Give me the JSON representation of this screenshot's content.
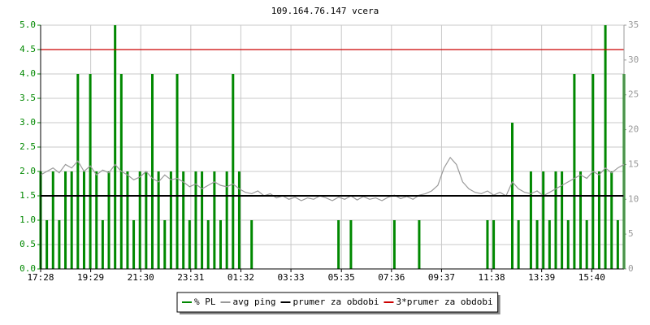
{
  "chart_data": {
    "type": "line",
    "title": "109.164.76.147 vcera",
    "x": [
      "17:28",
      "17:43",
      "17:58",
      "18:13",
      "18:28",
      "18:43",
      "18:58",
      "19:13",
      "19:28",
      "19:43",
      "19:58",
      "20:13",
      "20:28",
      "20:43",
      "20:58",
      "21:13",
      "21:28",
      "21:43",
      "21:58",
      "22:13",
      "22:28",
      "22:43",
      "22:58",
      "23:13",
      "23:28",
      "23:43",
      "23:58",
      "00:13",
      "00:28",
      "00:43",
      "00:58",
      "01:13",
      "01:28",
      "01:43",
      "01:58",
      "02:13",
      "02:28",
      "02:43",
      "02:58",
      "03:13",
      "03:28",
      "03:43",
      "03:58",
      "04:13",
      "04:28",
      "04:43",
      "04:58",
      "05:13",
      "05:28",
      "05:43",
      "05:58",
      "06:13",
      "06:28",
      "06:43",
      "06:58",
      "07:13",
      "07:28",
      "07:43",
      "07:58",
      "08:13",
      "08:28",
      "08:43",
      "08:58",
      "09:13",
      "09:28",
      "09:43",
      "09:58",
      "10:13",
      "10:28",
      "10:43",
      "10:58",
      "11:13",
      "11:28",
      "11:43",
      "11:58",
      "12:13",
      "12:28",
      "12:43",
      "12:58",
      "13:13",
      "13:28",
      "13:43",
      "13:58",
      "14:13",
      "14:28",
      "14:43",
      "14:58",
      "15:13",
      "15:28",
      "15:43",
      "15:58",
      "16:13",
      "16:28",
      "16:43",
      "16:58"
    ],
    "xlim": [
      "17:28",
      "16:58"
    ],
    "xticks": [
      "17:28",
      "19:29",
      "21:30",
      "23:31",
      "01:32",
      "03:33",
      "05:35",
      "07:36",
      "09:37",
      "11:38",
      "13:39",
      "15:40"
    ],
    "ylim": [
      0,
      5
    ],
    "yticks": [
      {
        "value": 0,
        "label": "0.0"
      },
      {
        "value": 0.5,
        "label": "0.5"
      },
      {
        "value": 1,
        "label": "1.0"
      },
      {
        "value": 1.5,
        "label": "1.5"
      },
      {
        "value": 2,
        "label": "2.0"
      },
      {
        "value": 2.5,
        "label": "2.5"
      },
      {
        "value": 3,
        "label": "3.0"
      },
      {
        "value": 3.5,
        "label": "3.5"
      },
      {
        "value": 4,
        "label": "4.0"
      },
      {
        "value": 4.5,
        "label": "4.5"
      },
      {
        "value": 5,
        "label": "5.0"
      }
    ],
    "y2lim": [
      0,
      35
    ],
    "y2ticks": [
      0,
      5,
      10,
      15,
      20,
      25,
      30,
      35
    ],
    "grid": true,
    "series": [
      {
        "name": "% PL",
        "color": "#008800",
        "style": "bar",
        "values": [
          2,
          1,
          2,
          1,
          2,
          2,
          4,
          2,
          4,
          2,
          1,
          2,
          5,
          4,
          2,
          1,
          2,
          2,
          4,
          2,
          1,
          2,
          4,
          2,
          1,
          2,
          2,
          1,
          2,
          1,
          2,
          4,
          2,
          0,
          1,
          0,
          0,
          0,
          0,
          0,
          0,
          0,
          0,
          0,
          0,
          0,
          0,
          0,
          1,
          0,
          1,
          0,
          0,
          0,
          0,
          0,
          0,
          1,
          0,
          0,
          0,
          1,
          0,
          0,
          0,
          0,
          0,
          0,
          0,
          0,
          0,
          0,
          1,
          1,
          0,
          0,
          3,
          1,
          0,
          2,
          1,
          2,
          1,
          2,
          2,
          1,
          4,
          2,
          1,
          4,
          2,
          5,
          2,
          1,
          4
        ]
      },
      {
        "name": "avg ping",
        "color": "#999999",
        "axis": "y2",
        "values": [
          13.5,
          14,
          14.5,
          13.8,
          15,
          14.5,
          15.5,
          14,
          14.8,
          13.5,
          14.2,
          13.8,
          15,
          14,
          13.5,
          12.8,
          13.2,
          14,
          13,
          12.5,
          13.5,
          12.8,
          13,
          12.5,
          11.8,
          12.2,
          11.5,
          12,
          12.5,
          12,
          11.8,
          12.2,
          11.5,
          11,
          10.8,
          11.2,
          10.5,
          10.8,
          10.2,
          10.5,
          10,
          10.3,
          9.8,
          10.2,
          10,
          10.5,
          10.2,
          9.8,
          10.3,
          10,
          10.5,
          9.9,
          10.4,
          10,
          10.2,
          9.8,
          10.3,
          10.6,
          10.1,
          10.4,
          10,
          10.6,
          10.8,
          11.2,
          12,
          14.5,
          16,
          15,
          12.5,
          11.5,
          11,
          10.8,
          11.2,
          10.6,
          11,
          10.5,
          12.5,
          11.5,
          11,
          10.8,
          11.2,
          10.5,
          11,
          11.5,
          12,
          12.5,
          13,
          13.5,
          13,
          14,
          13.5,
          14.5,
          13.8,
          14.5,
          15
        ]
      }
    ],
    "reference_lines": [
      {
        "name": "prumer za obdobi",
        "color": "#000000",
        "value": 1.5
      },
      {
        "name": "3*prumer za obdobi",
        "color": "#cc0000",
        "value": 4.5
      }
    ]
  }
}
